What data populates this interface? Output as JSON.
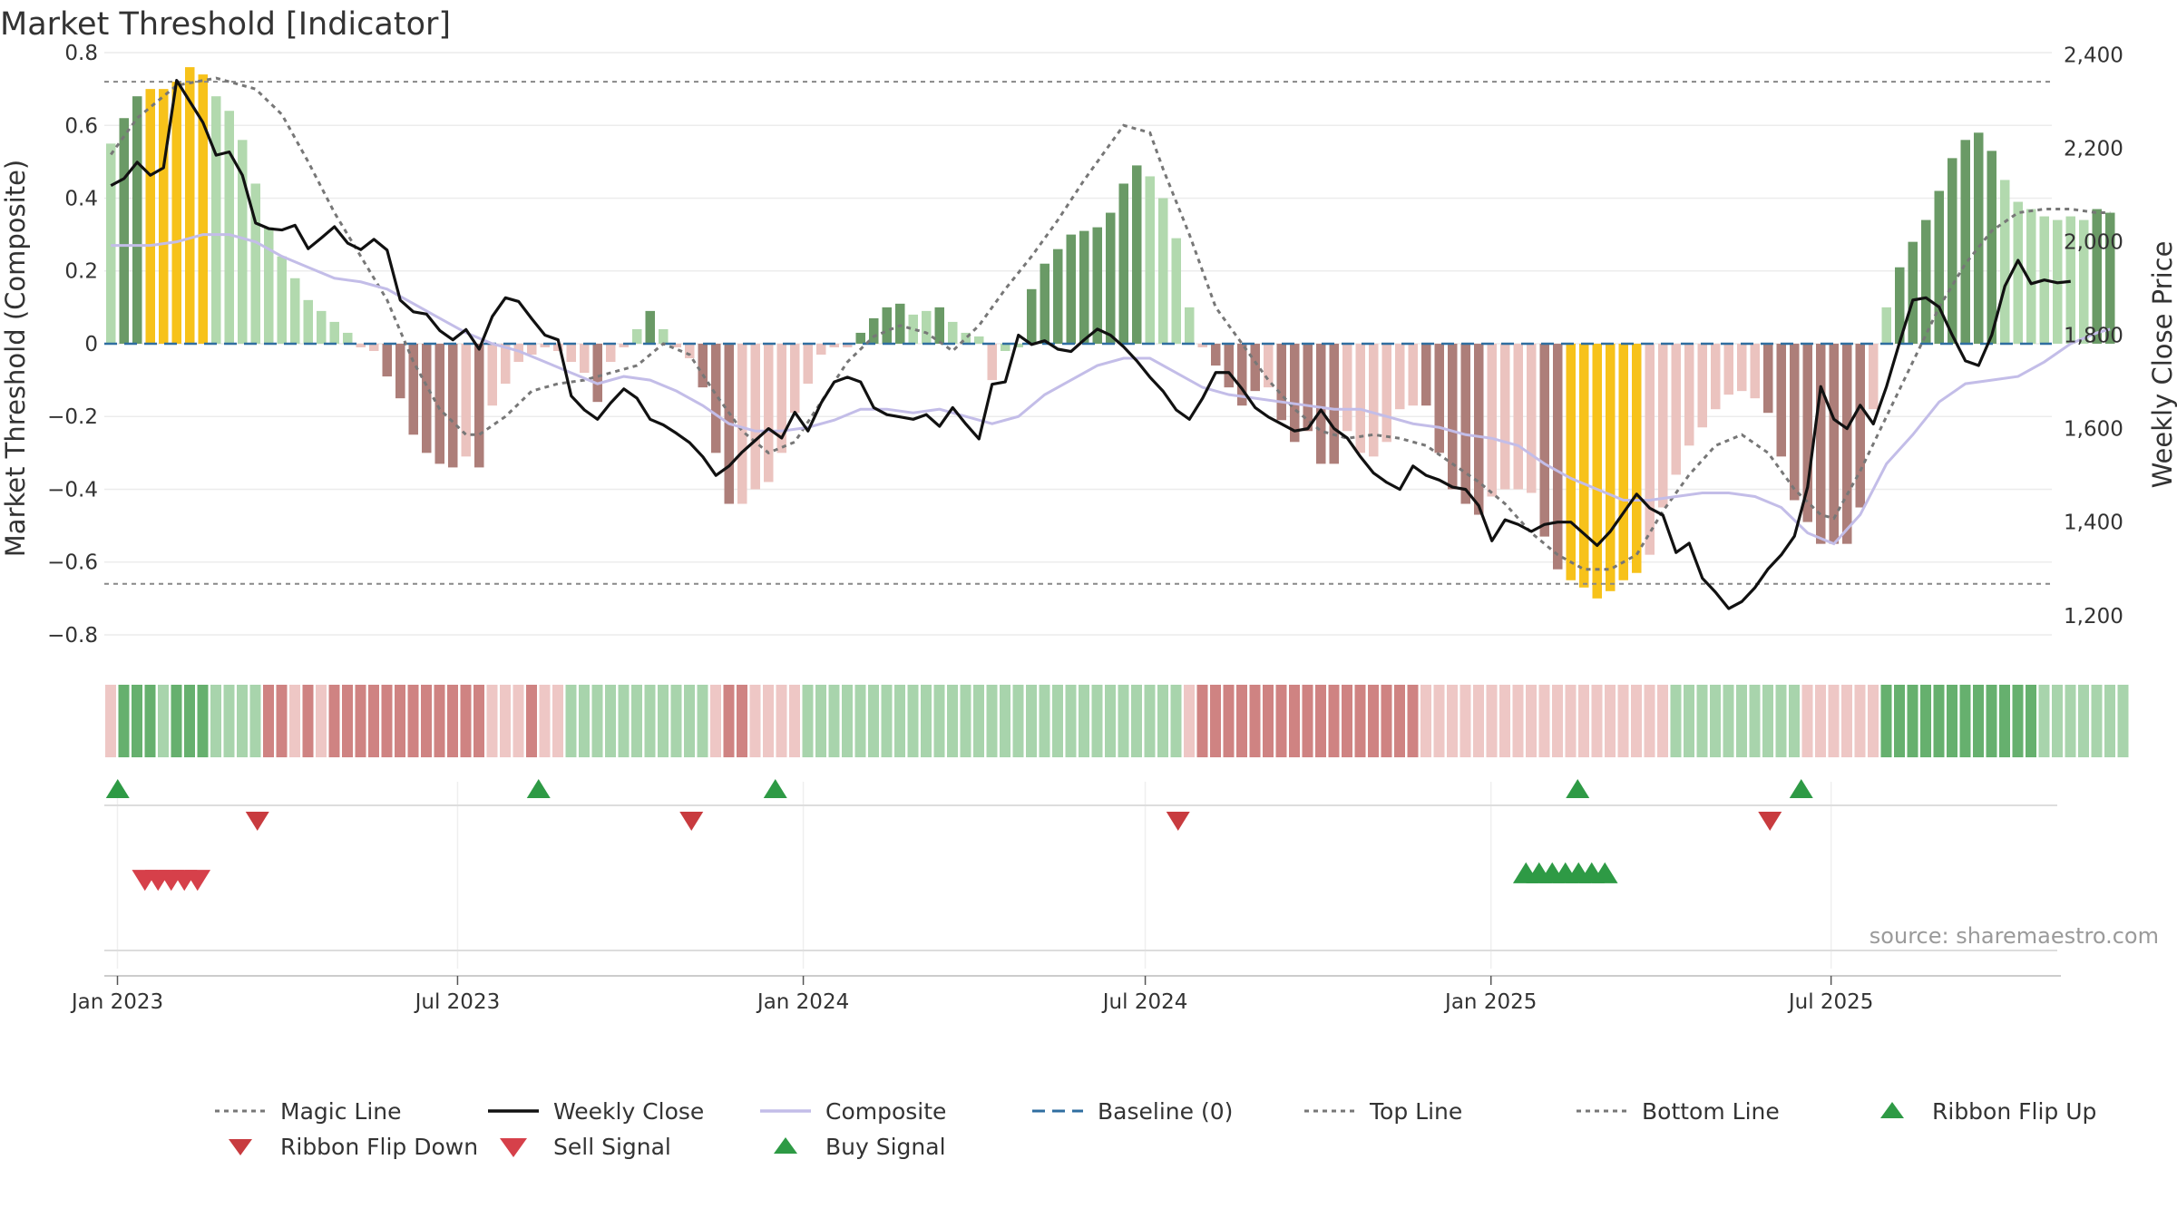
{
  "title": "Market Threshold [Indicator]",
  "source": "source: sharemaestro.com",
  "colors": {
    "strong_green": "#6a9a66",
    "light_green": "#b2d9ae",
    "strong_red": "#ad7e79",
    "light_red": "#ebc3bf",
    "gold": "#f7c21a",
    "magic_line": "#777777",
    "weekly_close": "#111111",
    "composite": "#c3bde8",
    "baseline": "#2f6ea0",
    "threshold_lines": "#888888",
    "ribbon_up": "#2e9a45",
    "sell_signal": "#d6404a"
  },
  "chart_data": {
    "type": "bar",
    "title": "Market Threshold [Indicator]",
    "ylabel": "Market Threshold (Composite)",
    "y2label": "Weekly Close Price",
    "ylim": [
      -0.85,
      0.82
    ],
    "y2lim": [
      1120,
      2420
    ],
    "yticks": [
      0.8,
      0.6,
      0.4,
      0.2,
      0,
      -0.2,
      -0.4,
      -0.6,
      -0.8
    ],
    "ytick_labels": [
      "0.8",
      "0.6",
      "0.4",
      "0.2",
      "0",
      "−0.2",
      "−0.4",
      "−0.6",
      "−0.8"
    ],
    "y2ticks": [
      2400,
      2200,
      2000,
      1800,
      1600,
      1400,
      1200
    ],
    "y2tick_labels": [
      "2,400",
      "2,200",
      "2,000",
      "1,800",
      "1,600",
      "1,400",
      "1,200"
    ],
    "xticks": [
      "2023-01-01",
      "2023-07-01",
      "2024-01-01",
      "2024-07-01",
      "2025-01-01",
      "2025-07-01"
    ],
    "xtick_labels": [
      "Jan 2023",
      "Jul 2023",
      "Jan 2024",
      "Jul 2024",
      "Jan 2025",
      "Jul 2025"
    ],
    "start_date": "2022-12-25",
    "top_line": 0.72,
    "bottom_line": -0.66,
    "composite": [
      0.55,
      0.62,
      0.68,
      0.7,
      0.7,
      0.72,
      0.76,
      0.74,
      0.68,
      0.64,
      0.56,
      0.44,
      0.32,
      0.24,
      0.18,
      0.12,
      0.09,
      0.06,
      0.03,
      -0.01,
      -0.02,
      -0.09,
      -0.15,
      -0.25,
      -0.3,
      -0.33,
      -0.34,
      -0.31,
      -0.34,
      -0.17,
      -0.11,
      -0.05,
      -0.03,
      -0.01,
      -0.02,
      -0.05,
      -0.08,
      -0.16,
      -0.05,
      -0.01,
      0.04,
      0.09,
      0.04,
      -0.01,
      -0.04,
      -0.12,
      -0.3,
      -0.44,
      -0.44,
      -0.4,
      -0.38,
      -0.3,
      -0.19,
      -0.11,
      -0.03,
      -0.01,
      -0.01,
      0.03,
      0.07,
      0.1,
      0.11,
      0.08,
      0.09,
      0.1,
      0.06,
      0.03,
      0.02,
      -0.1,
      -0.02,
      -0.01,
      0.15,
      0.22,
      0.26,
      0.3,
      0.31,
      0.32,
      0.36,
      0.44,
      0.49,
      0.46,
      0.4,
      0.29,
      0.1,
      -0.01,
      -0.06,
      -0.12,
      -0.17,
      -0.13,
      -0.12,
      -0.21,
      -0.27,
      -0.24,
      -0.33,
      -0.33,
      -0.24,
      -0.3,
      -0.31,
      -0.27,
      -0.18,
      -0.17,
      -0.17,
      -0.3,
      -0.4,
      -0.44,
      -0.47,
      -0.42,
      -0.4,
      -0.4,
      -0.41,
      -0.53,
      -0.62,
      -0.65,
      -0.67,
      -0.7,
      -0.68,
      -0.65,
      -0.63,
      -0.58,
      -0.45,
      -0.36,
      -0.28,
      -0.23,
      -0.18,
      -0.14,
      -0.13,
      -0.15,
      -0.19,
      -0.31,
      -0.43,
      -0.49,
      -0.55,
      -0.55,
      -0.55,
      -0.45,
      -0.18,
      0.1,
      0.21,
      0.28,
      0.34,
      0.42,
      0.51,
      0.56,
      0.58,
      0.53,
      0.45,
      0.39,
      0.37,
      0.35,
      0.34,
      0.35,
      0.34,
      0.37,
      0.36
    ],
    "composite_colors": [
      "lg",
      "dg",
      "dg",
      "gold",
      "gold",
      "gold",
      "gold",
      "gold",
      "lg",
      "lg",
      "lg",
      "lg",
      "lg",
      "lg",
      "lg",
      "lg",
      "lg",
      "lg",
      "lg",
      "lr",
      "lr",
      "dr",
      "dr",
      "dr",
      "dr",
      "dr",
      "dr",
      "lr",
      "dr",
      "lr",
      "lr",
      "lr",
      "lr",
      "lr",
      "lr",
      "lr",
      "lr",
      "dr",
      "lr",
      "lr",
      "lg",
      "dg",
      "lg",
      "lr",
      "lr",
      "dr",
      "dr",
      "dr",
      "lr",
      "lr",
      "lr",
      "lr",
      "lr",
      "lr",
      "lr",
      "lr",
      "lr",
      "dg",
      "dg",
      "dg",
      "dg",
      "lg",
      "lg",
      "dg",
      "lg",
      "lg",
      "lg",
      "lr",
      "lg",
      "lg",
      "dg",
      "dg",
      "dg",
      "dg",
      "dg",
      "dg",
      "dg",
      "dg",
      "dg",
      "lg",
      "lg",
      "lg",
      "lg",
      "lr",
      "dr",
      "dr",
      "dr",
      "dr",
      "lr",
      "dr",
      "dr",
      "dr",
      "dr",
      "dr",
      "lr",
      "lr",
      "lr",
      "lr",
      "lr",
      "lr",
      "dr",
      "dr",
      "dr",
      "dr",
      "dr",
      "lr",
      "lr",
      "lr",
      "lr",
      "dr",
      "dr",
      "gold",
      "gold",
      "gold",
      "gold",
      "gold",
      "gold",
      "lr",
      "lr",
      "lr",
      "lr",
      "lr",
      "lr",
      "lr",
      "lr",
      "lr",
      "dr",
      "dr",
      "dr",
      "dr",
      "dr",
      "dr",
      "dr",
      "dr",
      "lr",
      "lg",
      "dg",
      "dg",
      "dg",
      "dg",
      "dg",
      "dg",
      "dg",
      "dg",
      "lg",
      "lg",
      "lg",
      "lg",
      "lg",
      "lg",
      "lg",
      "dg",
      "dg"
    ],
    "weekly_close": [
      2120,
      2135,
      2170,
      2142,
      2158,
      2345,
      2300,
      2255,
      2185,
      2192,
      2142,
      2040,
      2028,
      2025,
      2035,
      1985,
      2008,
      2032,
      1997,
      1983,
      2005,
      1982,
      1875,
      1850,
      1845,
      1810,
      1790,
      1812,
      1770,
      1840,
      1880,
      1872,
      1835,
      1800,
      1790,
      1670,
      1640,
      1620,
      1655,
      1685,
      1665,
      1620,
      1608,
      1590,
      1570,
      1540,
      1500,
      1520,
      1550,
      1575,
      1600,
      1580,
      1635,
      1595,
      1655,
      1700,
      1710,
      1700,
      1645,
      1630,
      1625,
      1620,
      1630,
      1605,
      1645,
      1610,
      1578,
      1695,
      1700,
      1800,
      1780,
      1788,
      1770,
      1765,
      1790,
      1813,
      1800,
      1775,
      1745,
      1710,
      1680,
      1640,
      1620,
      1665,
      1720,
      1720,
      1685,
      1645,
      1625,
      1610,
      1595,
      1600,
      1640,
      1600,
      1580,
      1540,
      1505,
      1485,
      1470,
      1520,
      1500,
      1490,
      1475,
      1470,
      1435,
      1360,
      1405,
      1395,
      1380,
      1395,
      1400,
      1400,
      1375,
      1350,
      1380,
      1420,
      1460,
      1430,
      1415,
      1335,
      1355,
      1280,
      1250,
      1215,
      1230,
      1260,
      1300,
      1330,
      1370,
      1475,
      1690,
      1620,
      1600,
      1650,
      1610,
      1690,
      1785,
      1875,
      1880,
      1860,
      1800,
      1745,
      1735,
      1800,
      1905,
      1960,
      1910,
      1918,
      1912,
      1915
    ],
    "magic_line": [
      0.57,
      0.6,
      0.63,
      0.66,
      0.69,
      0.71,
      0.73,
      0.74,
      0.74,
      0.74,
      0.72,
      0.67,
      0.6,
      0.5,
      0.41,
      0.32,
      0.22,
      0.14,
      0.05,
      -0.05,
      -0.13,
      -0.21,
      -0.27,
      -0.32,
      -0.34,
      -0.32,
      -0.27,
      -0.22,
      -0.16,
      -0.11,
      -0.09,
      -0.1,
      -0.12,
      -0.12,
      -0.1,
      -0.07,
      -0.03,
      0.0,
      -0.02,
      -0.08,
      -0.14,
      -0.2,
      -0.26,
      -0.29,
      -0.31,
      -0.32,
      -0.3,
      -0.26,
      -0.2,
      -0.14,
      -0.08,
      -0.02,
      0.03,
      0.06,
      0.06,
      0.04,
      0.02,
      0.0,
      -0.01,
      0.0,
      0.03,
      0.08,
      0.14,
      0.2,
      0.27,
      0.33,
      0.38,
      0.4,
      0.37,
      0.3,
      0.19,
      0.09,
      0.03,
      -0.01,
      -0.06,
      -0.1,
      -0.13,
      -0.16,
      -0.19,
      -0.22,
      -0.24,
      -0.26,
      -0.27,
      -0.28,
      -0.3,
      -0.33,
      -0.37,
      -0.42,
      -0.48,
      -0.55,
      -0.6,
      -0.63,
      -0.64,
      -0.62,
      -0.58,
      -0.53,
      -0.47,
      -0.42,
      -0.38,
      -0.36,
      -0.37,
      -0.41,
      -0.46,
      -0.51,
      -0.54,
      -0.55,
      -0.52,
      -0.45,
      -0.35,
      -0.22,
      -0.08,
      0.05,
      0.18,
      0.3,
      0.38,
      0.41,
      0.41,
      0.4,
      0.39,
      0.38,
      0.38,
      0.37,
      0.37,
      0.36,
      0.36,
      0.36,
      0.36,
      0.36,
      0.36,
      0.36,
      0.36,
      0.36,
      0.36,
      0.36,
      0.36,
      0.36,
      0.36,
      0.36,
      0.36,
      0.36,
      0.36,
      0.36,
      0.36,
      0.36,
      0.36,
      0.36,
      0.36,
      0.36,
      0.36,
      0.36,
      0.36,
      0.36,
      0.36,
      0.36,
      0.36
    ],
    "magic_line_points": [
      [
        0,
        0.52
      ],
      [
        2,
        0.62
      ],
      [
        5,
        0.71
      ],
      [
        8,
        0.73
      ],
      [
        11,
        0.7
      ],
      [
        13,
        0.63
      ],
      [
        15,
        0.5
      ],
      [
        17,
        0.36
      ],
      [
        19,
        0.24
      ],
      [
        21,
        0.12
      ],
      [
        23,
        -0.05
      ],
      [
        25,
        -0.18
      ],
      [
        27,
        -0.25
      ],
      [
        28,
        -0.25
      ],
      [
        30,
        -0.2
      ],
      [
        32,
        -0.13
      ],
      [
        34,
        -0.11
      ],
      [
        36,
        -0.1
      ],
      [
        38,
        -0.08
      ],
      [
        40,
        -0.06
      ],
      [
        42,
        0.0
      ],
      [
        44,
        -0.03
      ],
      [
        46,
        -0.14
      ],
      [
        48,
        -0.24
      ],
      [
        50,
        -0.3
      ],
      [
        52,
        -0.27
      ],
      [
        54,
        -0.16
      ],
      [
        56,
        -0.05
      ],
      [
        58,
        0.02
      ],
      [
        60,
        0.05
      ],
      [
        62,
        0.03
      ],
      [
        64,
        -0.02
      ],
      [
        66,
        0.05
      ],
      [
        68,
        0.15
      ],
      [
        70,
        0.24
      ],
      [
        72,
        0.34
      ],
      [
        74,
        0.45
      ],
      [
        76,
        0.55
      ],
      [
        77,
        0.6
      ],
      [
        79,
        0.58
      ],
      [
        80,
        0.48
      ],
      [
        82,
        0.3
      ],
      [
        84,
        0.1
      ],
      [
        86,
        0.0
      ],
      [
        88,
        -0.1
      ],
      [
        90,
        -0.18
      ],
      [
        92,
        -0.24
      ],
      [
        94,
        -0.26
      ],
      [
        96,
        -0.25
      ],
      [
        98,
        -0.26
      ],
      [
        100,
        -0.28
      ],
      [
        102,
        -0.33
      ],
      [
        104,
        -0.38
      ],
      [
        106,
        -0.44
      ],
      [
        108,
        -0.52
      ],
      [
        110,
        -0.58
      ],
      [
        112,
        -0.62
      ],
      [
        114,
        -0.62
      ],
      [
        116,
        -0.58
      ],
      [
        118,
        -0.46
      ],
      [
        120,
        -0.36
      ],
      [
        122,
        -0.28
      ],
      [
        124,
        -0.25
      ],
      [
        126,
        -0.3
      ],
      [
        128,
        -0.4
      ],
      [
        130,
        -0.47
      ],
      [
        131,
        -0.48
      ],
      [
        133,
        -0.35
      ],
      [
        135,
        -0.2
      ],
      [
        137,
        -0.05
      ],
      [
        139,
        0.1
      ],
      [
        141,
        0.22
      ],
      [
        143,
        0.31
      ],
      [
        145,
        0.36
      ],
      [
        147,
        0.37
      ],
      [
        149,
        0.37
      ],
      [
        151,
        0.36
      ],
      [
        152,
        0.36
      ]
    ],
    "composite_line": [
      [
        0,
        0.27
      ],
      [
        3,
        0.27
      ],
      [
        5,
        0.28
      ],
      [
        7,
        0.3
      ],
      [
        9,
        0.3
      ],
      [
        11,
        0.28
      ],
      [
        13,
        0.24
      ],
      [
        15,
        0.21
      ],
      [
        17,
        0.18
      ],
      [
        19,
        0.17
      ],
      [
        21,
        0.15
      ],
      [
        23,
        0.11
      ],
      [
        25,
        0.07
      ],
      [
        27,
        0.03
      ],
      [
        29,
        0.0
      ],
      [
        31,
        -0.02
      ],
      [
        33,
        -0.05
      ],
      [
        35,
        -0.08
      ],
      [
        37,
        -0.11
      ],
      [
        39,
        -0.09
      ],
      [
        41,
        -0.1
      ],
      [
        43,
        -0.13
      ],
      [
        45,
        -0.17
      ],
      [
        47,
        -0.22
      ],
      [
        49,
        -0.24
      ],
      [
        51,
        -0.24
      ],
      [
        53,
        -0.23
      ],
      [
        55,
        -0.21
      ],
      [
        57,
        -0.18
      ],
      [
        59,
        -0.18
      ],
      [
        61,
        -0.19
      ],
      [
        63,
        -0.18
      ],
      [
        65,
        -0.2
      ],
      [
        67,
        -0.22
      ],
      [
        69,
        -0.2
      ],
      [
        71,
        -0.14
      ],
      [
        73,
        -0.1
      ],
      [
        75,
        -0.06
      ],
      [
        77,
        -0.04
      ],
      [
        79,
        -0.04
      ],
      [
        81,
        -0.08
      ],
      [
        83,
        -0.12
      ],
      [
        85,
        -0.14
      ],
      [
        87,
        -0.15
      ],
      [
        89,
        -0.16
      ],
      [
        91,
        -0.17
      ],
      [
        93,
        -0.18
      ],
      [
        95,
        -0.18
      ],
      [
        97,
        -0.2
      ],
      [
        99,
        -0.22
      ],
      [
        101,
        -0.23
      ],
      [
        103,
        -0.25
      ],
      [
        105,
        -0.26
      ],
      [
        107,
        -0.28
      ],
      [
        109,
        -0.33
      ],
      [
        111,
        -0.37
      ],
      [
        113,
        -0.4
      ],
      [
        115,
        -0.43
      ],
      [
        117,
        -0.43
      ],
      [
        119,
        -0.42
      ],
      [
        121,
        -0.41
      ],
      [
        123,
        -0.41
      ],
      [
        125,
        -0.42
      ],
      [
        127,
        -0.45
      ],
      [
        129,
        -0.52
      ],
      [
        131,
        -0.55
      ],
      [
        133,
        -0.47
      ],
      [
        135,
        -0.33
      ],
      [
        137,
        -0.25
      ],
      [
        139,
        -0.16
      ],
      [
        141,
        -0.11
      ],
      [
        143,
        -0.1
      ],
      [
        145,
        -0.09
      ],
      [
        147,
        -0.05
      ],
      [
        149,
        0.0
      ],
      [
        151,
        0.03
      ],
      [
        152,
        0.04
      ]
    ],
    "ribbon": [
      "lr",
      "g",
      "g",
      "g",
      "lg",
      "g",
      "g",
      "g",
      "lg",
      "lg",
      "lg",
      "lg",
      "r",
      "r",
      "lr",
      "r",
      "lr",
      "r",
      "r",
      "r",
      "r",
      "r",
      "r",
      "r",
      "r",
      "r",
      "r",
      "r",
      "r",
      "lr",
      "lr",
      "lr",
      "r",
      "lr",
      "lr",
      "lg",
      "lg",
      "lg",
      "lg",
      "lg",
      "lg",
      "lg",
      "lg",
      "lg",
      "lg",
      "lg",
      "lr",
      "r",
      "r",
      "lr",
      "lr",
      "lr",
      "lr",
      "lg",
      "lg",
      "lg",
      "lg",
      "lg",
      "lg",
      "lg",
      "lg",
      "lg",
      "lg",
      "lg",
      "lg",
      "lg",
      "lg",
      "lg",
      "lg",
      "lg",
      "lg",
      "lg",
      "lg",
      "lg",
      "lg",
      "lg",
      "lg",
      "lg",
      "lg",
      "lg",
      "lg",
      "lg",
      "lr",
      "r",
      "r",
      "r",
      "r",
      "r",
      "r",
      "r",
      "r",
      "r",
      "r",
      "r",
      "r",
      "r",
      "r",
      "r",
      "r",
      "r",
      "lr",
      "lr",
      "lr",
      "lr",
      "lr",
      "lr",
      "lr",
      "lr",
      "lr",
      "lr",
      "lr",
      "lr",
      "lr",
      "lr",
      "lr",
      "lr",
      "lr",
      "lr",
      "lr",
      "lg",
      "lg",
      "lg",
      "lg",
      "lg",
      "lg",
      "lg",
      "lg",
      "lg",
      "lg",
      "lr",
      "lr",
      "lr",
      "lr",
      "lr",
      "lr",
      "g",
      "g",
      "g",
      "g",
      "g",
      "g",
      "g",
      "g",
      "g",
      "g",
      "g",
      "g",
      "lg",
      "lg",
      "lg",
      "lg",
      "lg",
      "lg",
      "lg"
    ],
    "ribbon_flip_up_weeks": [
      1,
      33,
      51,
      112,
      129
    ],
    "ribbon_flip_down_weeks": [
      11,
      44,
      81,
      126
    ],
    "sell_signal_weeks": [
      3,
      4,
      5,
      6,
      7
    ],
    "buy_signal_weeks": [
      108,
      109,
      110,
      111,
      112,
      113,
      114
    ],
    "legend": [
      {
        "label": "Magic Line",
        "style": "dotted-line"
      },
      {
        "label": "Weekly Close",
        "style": "solid-line"
      },
      {
        "label": "Composite",
        "style": "purple-line"
      },
      {
        "label": "Baseline (0)",
        "style": "dashed-line"
      },
      {
        "label": "Top Line",
        "style": "dotted-line"
      },
      {
        "label": "Bottom Line",
        "style": "dotted-line"
      },
      {
        "label": "Ribbon Flip Up",
        "style": "up-triangle"
      },
      {
        "label": "Ribbon Flip Down",
        "style": "down-triangle-dark"
      },
      {
        "label": "Sell Signal",
        "style": "down-triangle-red"
      },
      {
        "label": "Buy Signal",
        "style": "up-triangle"
      }
    ]
  }
}
